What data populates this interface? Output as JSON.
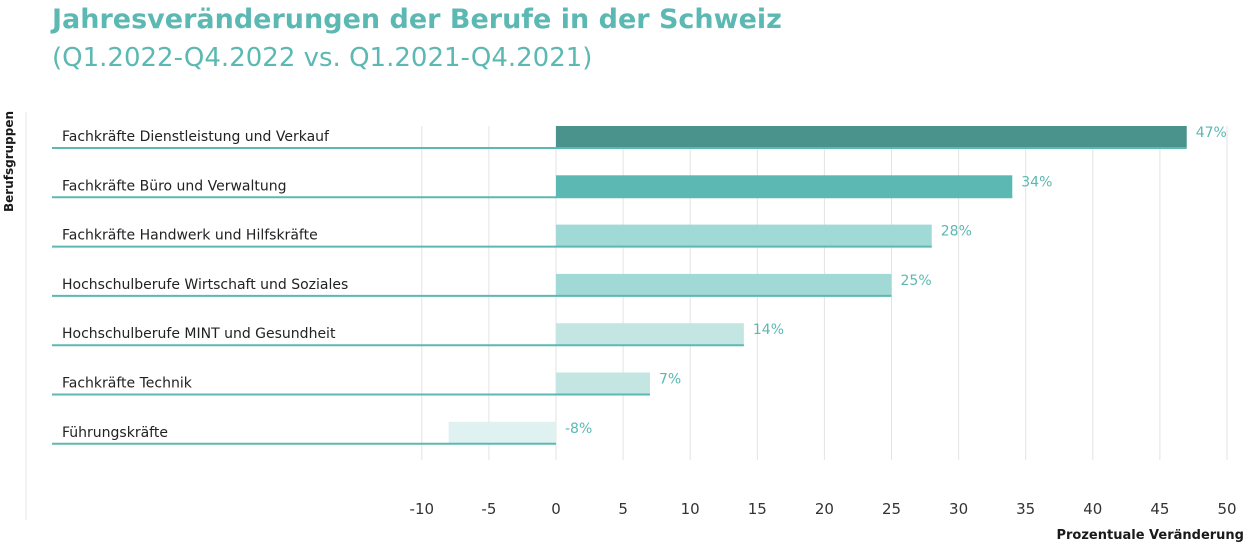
{
  "chart_data": {
    "type": "bar",
    "orientation": "horizontal",
    "title": "Jahresveränderungen der Berufe in der Schweiz",
    "subtitle": "(Q1.2022-Q4.2022 vs. Q1.2021-Q4.2021)",
    "ylabel": "Berufsgruppen",
    "xlabel": "Prozentuale Veränderung",
    "xlim": [
      -10,
      50
    ],
    "xticks": [
      -10,
      -5,
      0,
      5,
      10,
      15,
      20,
      25,
      30,
      35,
      40,
      45,
      50
    ],
    "grid": true,
    "categories": [
      "Fachkräfte Dienstleistung und Verkauf",
      "Fachkräfte Büro und Verwaltung",
      "Fachkräfte Handwerk und Hilfskräfte",
      "Hochschulberufe Wirtschaft und Soziales",
      "Hochschulberufe MINT und Gesundheit",
      "Fachkräfte Technik",
      "Führungskräfte"
    ],
    "values": [
      47,
      34,
      28,
      25,
      14,
      7,
      -8
    ],
    "value_labels": [
      "47%",
      "34%",
      "28%",
      "25%",
      "14%",
      "7%",
      "-8%"
    ],
    "bar_colors": [
      "#4a938c",
      "#5cb8b2",
      "#a0d9d5",
      "#a0d9d5",
      "#c3e6e3",
      "#c3e6e3",
      "#dff1f0"
    ],
    "accent_color": "#5cb8b2"
  }
}
